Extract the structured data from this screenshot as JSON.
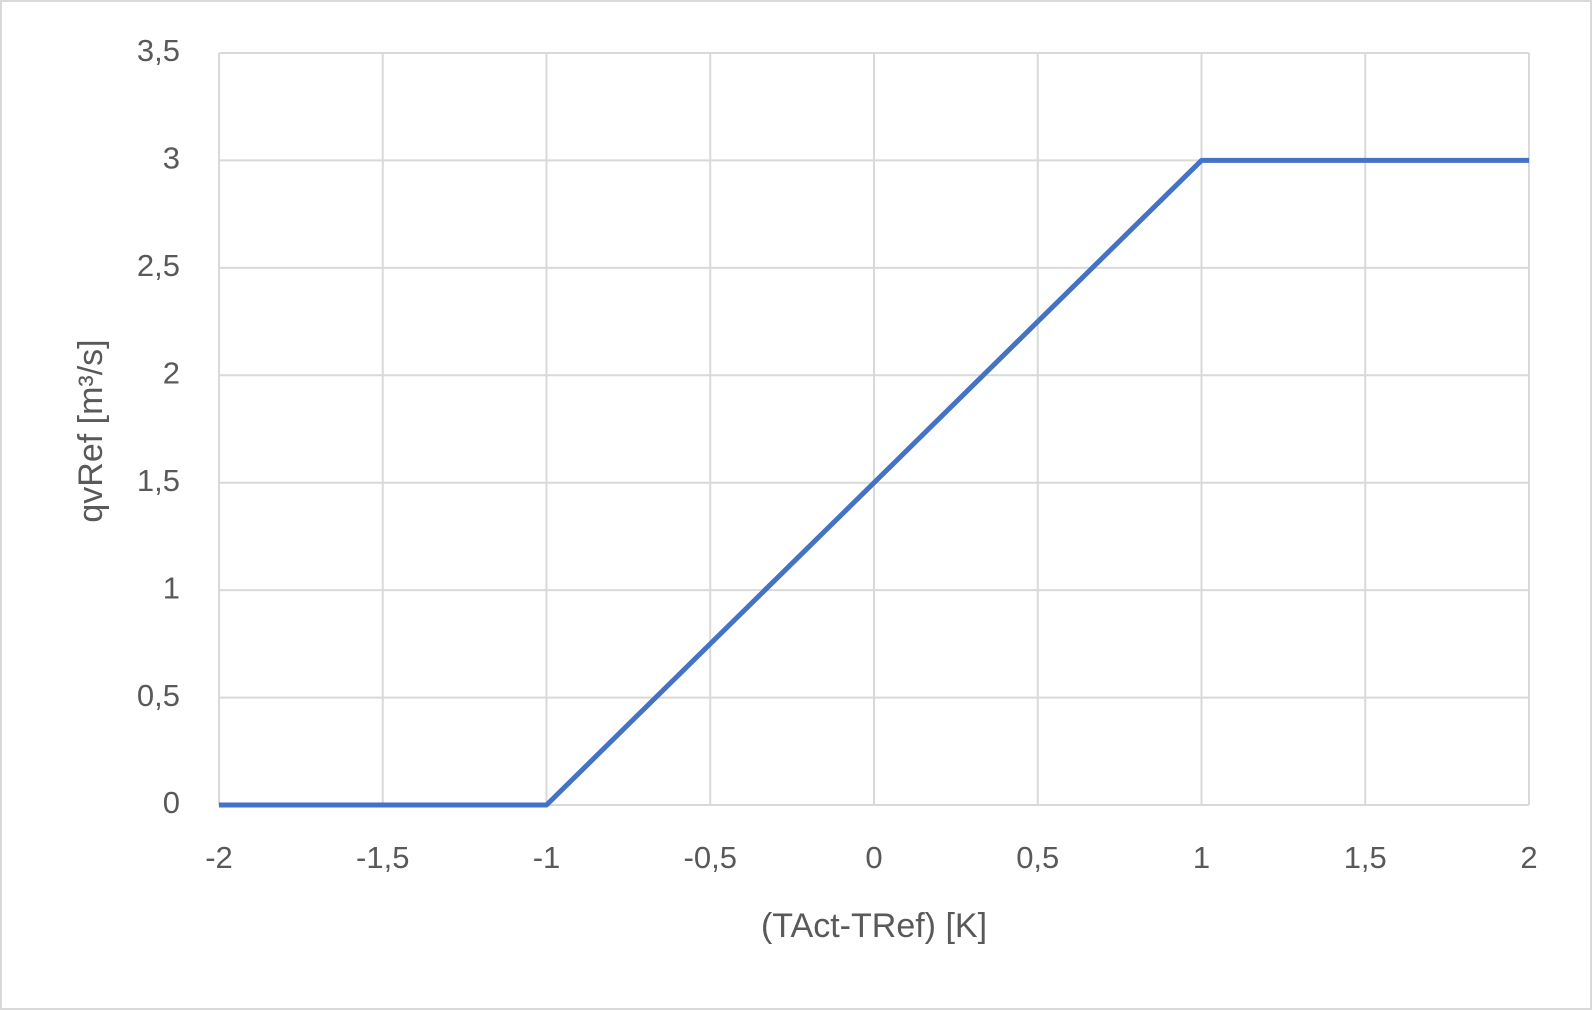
{
  "chart_data": {
    "type": "line",
    "x_label": "(TAct-TRef) [K]",
    "y_label": "qvRef [m³/s]",
    "x": [
      -2,
      -1,
      1,
      2
    ],
    "values": [
      0,
      0,
      3,
      3
    ],
    "color": "#4472c4",
    "xlim": [
      -2,
      2
    ],
    "xticks": [
      -2,
      {
        "value": -1.5,
        "label": "-1,5"
      },
      -1,
      {
        "value": -0.5,
        "label": "-0,5"
      },
      0,
      {
        "value": 0.5,
        "label": "0,5"
      },
      1,
      {
        "value": 1.5,
        "label": "1,5"
      },
      2
    ],
    "ylim": [
      0,
      3.5
    ],
    "yticks": [
      0,
      {
        "value": 0.5,
        "label": "0,5"
      },
      1,
      {
        "value": 1.5,
        "label": "1,5"
      },
      2,
      {
        "value": 2.5,
        "label": "2,5"
      },
      3,
      {
        "value": 3.5,
        "label": "3,5"
      }
    ],
    "grid": true
  }
}
